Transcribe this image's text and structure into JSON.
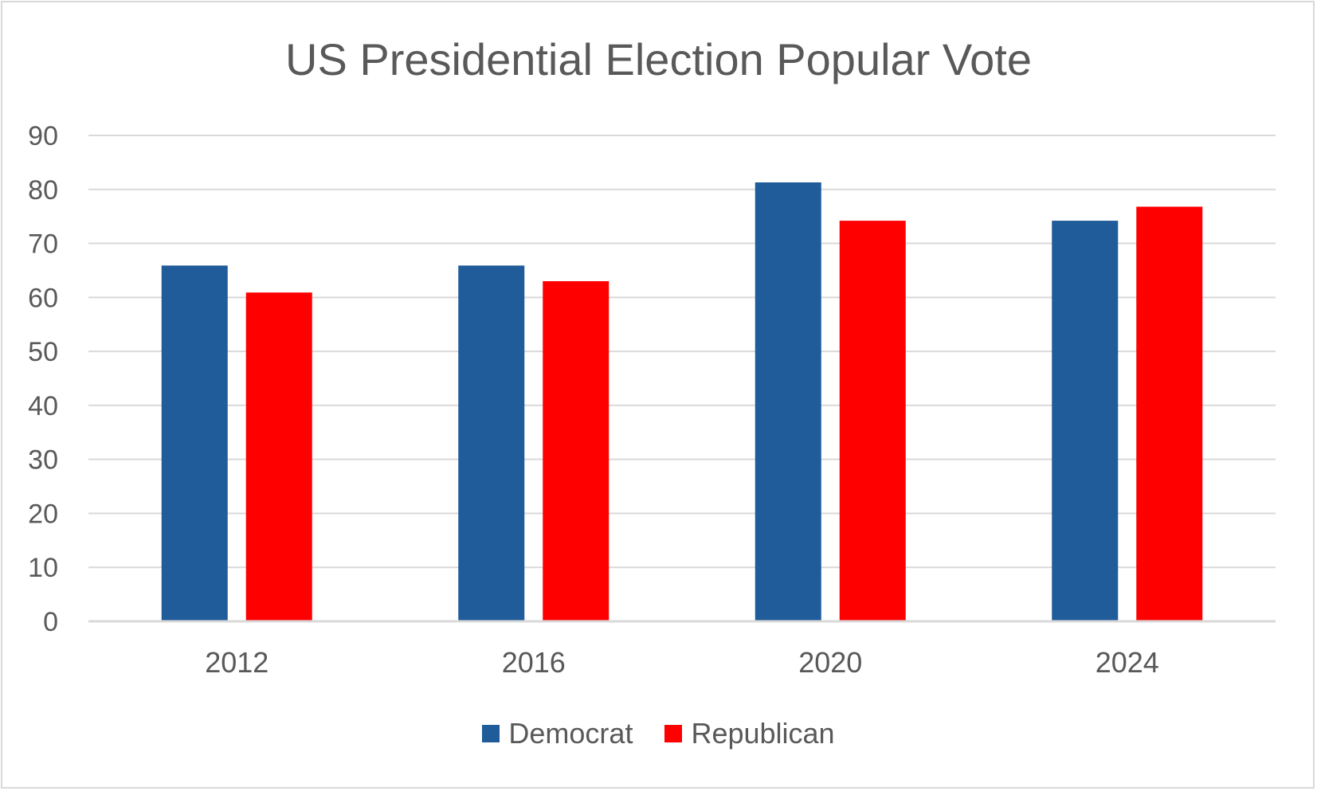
{
  "chart_data": {
    "type": "bar",
    "title": "US Presidential Election Popular Vote",
    "xlabel": "",
    "ylabel": "",
    "categories": [
      "2012",
      "2016",
      "2020",
      "2024"
    ],
    "series": [
      {
        "name": "Democrat",
        "color": "#1f5c99",
        "values": [
          65.9,
          65.9,
          81.3,
          74.2
        ]
      },
      {
        "name": "Republican",
        "color": "#ff0000",
        "values": [
          60.9,
          63.0,
          74.2,
          76.8
        ]
      }
    ],
    "ylim": [
      0,
      90
    ],
    "yticks": [
      "0",
      "10",
      "20",
      "30",
      "40",
      "50",
      "60",
      "70",
      "80",
      "90"
    ],
    "grid": true,
    "legend_position": "bottom"
  }
}
